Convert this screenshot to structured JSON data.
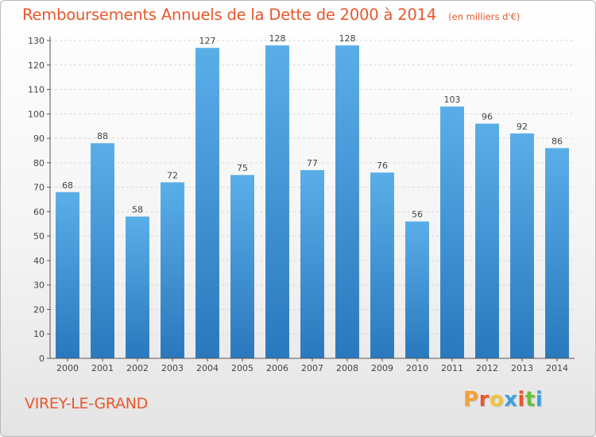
{
  "header": {
    "title": "Remboursements Annuels de la Dette de 2000 à 2014",
    "unit": "(en milliers d'€)"
  },
  "footer": {
    "commune": "VIREY-LE-GRAND",
    "brand_letters": [
      "P",
      "r",
      "o",
      "x",
      "i",
      "t",
      "i"
    ],
    "brand_colors": [
      "#f2a23a",
      "#e8572c",
      "#f2c23a",
      "#3aa0dd",
      "#e8572c",
      "#6bbf3a",
      "#3aa0dd"
    ]
  },
  "colors": {
    "accent": "#e8572c",
    "bar_top": "#5aaee8",
    "bar_bottom": "#2a78bd",
    "grid": "#d8d8d8",
    "axis": "#555555"
  },
  "chart_data": {
    "type": "bar",
    "title": "Remboursements Annuels de la Dette de 2000 à 2014",
    "subtitle": "(en milliers d'€)",
    "categories": [
      "2000",
      "2001",
      "2002",
      "2003",
      "2004",
      "2005",
      "2006",
      "2007",
      "2008",
      "2009",
      "2010",
      "2011",
      "2012",
      "2013",
      "2014"
    ],
    "values": [
      68,
      88,
      58,
      72,
      127,
      75,
      128,
      77,
      128,
      76,
      56,
      103,
      96,
      92,
      86
    ],
    "ylim": [
      0,
      130
    ],
    "yticks": [
      0,
      10,
      20,
      30,
      40,
      50,
      60,
      70,
      80,
      90,
      100,
      110,
      120,
      130
    ],
    "grid": true,
    "legend": "none"
  }
}
